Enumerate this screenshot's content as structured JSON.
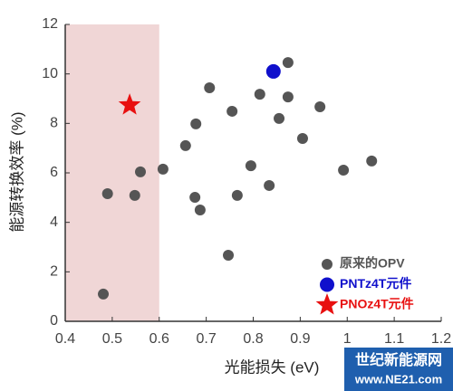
{
  "chart_data": {
    "type": "scatter",
    "x_label": "光能损失 (eV)",
    "y_label": "能源转换效率 (%)",
    "xlim": [
      0.4,
      1.2
    ],
    "xticks": [
      0.4,
      0.5,
      0.6,
      0.7,
      0.8,
      0.9,
      1,
      1.1,
      1.2
    ],
    "ylim": [
      0,
      12
    ],
    "yticks": [
      0,
      2,
      4,
      6,
      8,
      10,
      12
    ],
    "shaded_x": [
      0.4,
      0.6
    ],
    "shade_color": "#f0d6d6",
    "legend": "lower right",
    "series": [
      {
        "name": "原来的OPV",
        "color": "#555555",
        "marker": "circle",
        "x": [
          0.481,
          0.49,
          0.548,
          0.56,
          0.608,
          0.656,
          0.678,
          0.707,
          0.676,
          0.687,
          0.755,
          0.747,
          0.766,
          0.795,
          0.814,
          0.834,
          0.855,
          0.874,
          0.874,
          0.905,
          0.942,
          0.992,
          1.052
        ],
        "values": [
          1.1,
          5.16,
          5.09,
          6.04,
          6.15,
          7.1,
          7.98,
          9.44,
          5.01,
          4.5,
          8.49,
          2.67,
          5.09,
          6.29,
          9.18,
          5.49,
          8.2,
          10.46,
          9.07,
          7.39,
          8.67,
          6.11,
          6.48
        ]
      },
      {
        "name": "PNTz4T元件",
        "color": "#1010cc",
        "marker": "big-circle",
        "x": [
          0.843
        ],
        "values": [
          10.1
        ]
      },
      {
        "name": "PNOz4T元件",
        "color": "#e81010",
        "marker": "star",
        "x": [
          0.537
        ],
        "values": [
          8.74
        ]
      }
    ]
  },
  "watermark": {
    "line1": "世纪新能源网",
    "line2": "www.NE21.com"
  }
}
